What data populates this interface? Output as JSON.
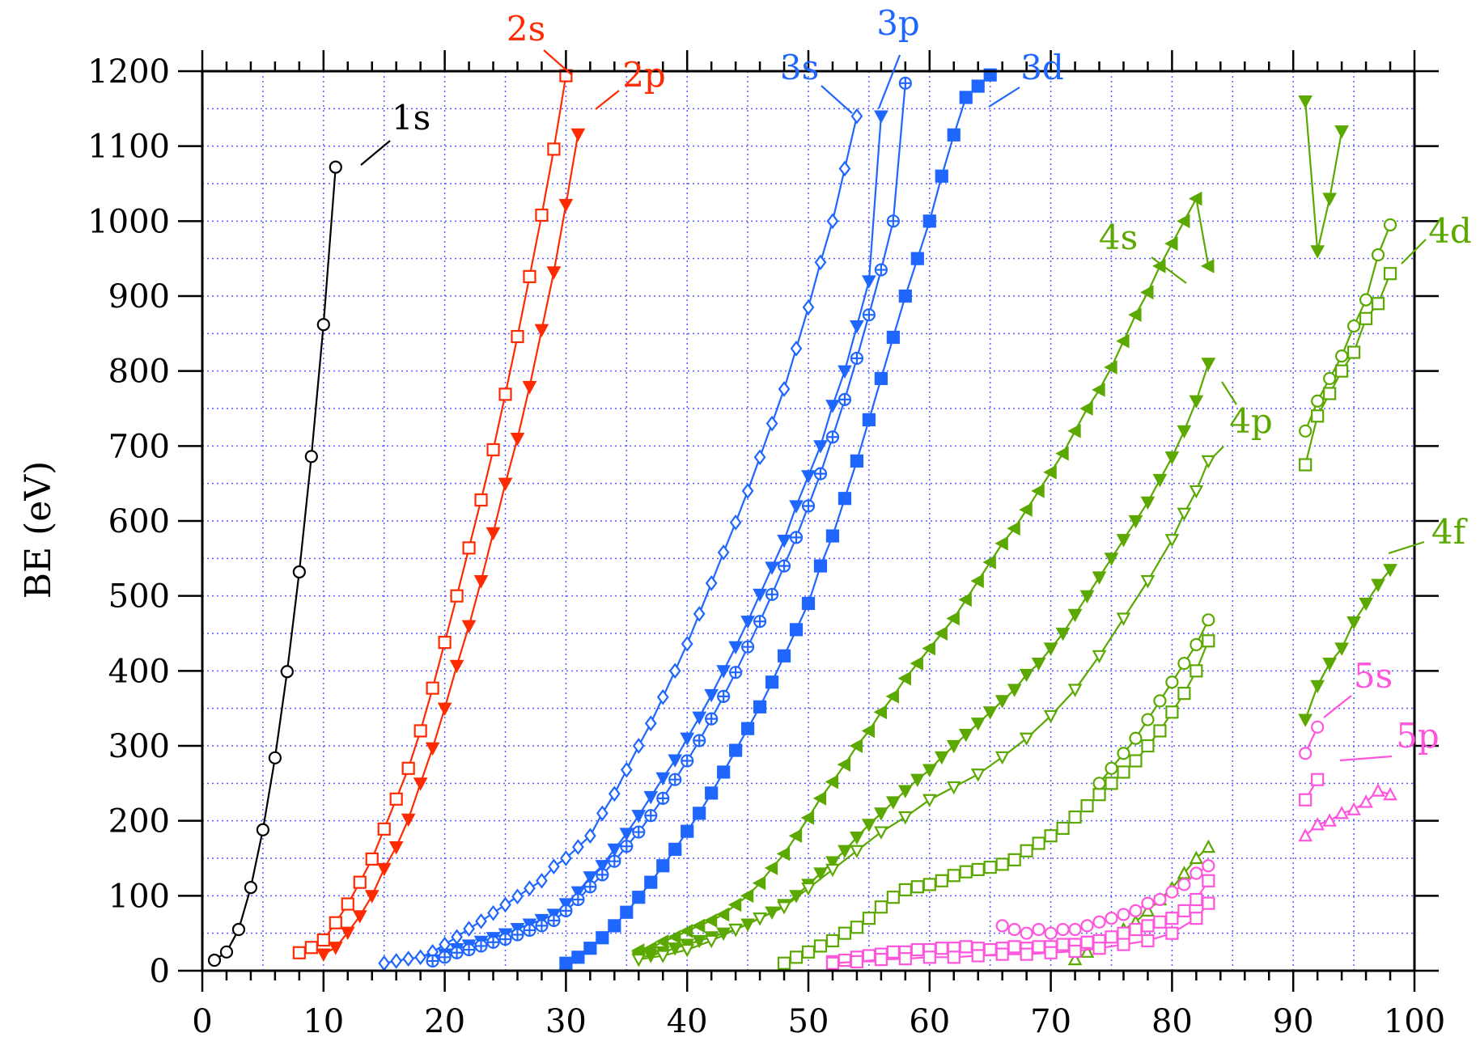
{
  "chart_data": {
    "type": "line",
    "title": "",
    "xlabel": "",
    "ylabel": "BE (eV)",
    "xlim": [
      0,
      100
    ],
    "ylim": [
      0,
      1200
    ],
    "x_ticks": [
      "0",
      "10",
      "20",
      "30",
      "40",
      "50",
      "60",
      "70",
      "80",
      "90",
      "100"
    ],
    "y_ticks": [
      "0",
      "100",
      "200",
      "300",
      "400",
      "500",
      "600",
      "700",
      "800",
      "900",
      "1000",
      "1100",
      "1200"
    ],
    "grid": true,
    "series": [
      {
        "name": "1s",
        "color": "#000000",
        "marker": "circle",
        "x": [
          1,
          2,
          3,
          4,
          5,
          6,
          7,
          8,
          9,
          10,
          11
        ],
        "y": [
          14,
          25,
          55,
          111,
          188,
          284,
          399,
          532,
          686,
          862,
          1072
        ]
      },
      {
        "name": "2s",
        "color": "#ff2a00",
        "marker": "square",
        "x": [
          8,
          9,
          10,
          11,
          12,
          13,
          14,
          15,
          16,
          17,
          18,
          19,
          20,
          21,
          22,
          23,
          24,
          25,
          26,
          27,
          28,
          29,
          30
        ],
        "y": [
          24,
          31,
          41,
          64,
          89,
          118,
          149,
          189,
          229,
          270,
          320,
          377,
          438,
          500,
          564,
          628,
          695,
          769,
          846,
          926,
          1008,
          1096,
          1194
        ]
      },
      {
        "name": "2p",
        "color": "#ff2a00",
        "marker": "triangle-down",
        "x": [
          10,
          11,
          12,
          13,
          14,
          15,
          16,
          17,
          18,
          19,
          20,
          21,
          22,
          23,
          24,
          25,
          26,
          27,
          28,
          29,
          30,
          31
        ],
        "y": [
          22,
          31,
          51,
          73,
          100,
          136,
          165,
          202,
          250,
          297,
          350,
          407,
          460,
          520,
          584,
          650,
          710,
          779,
          855,
          932,
          1022,
          1116
        ]
      },
      {
        "name": "3s",
        "color": "#1f66ff",
        "marker": "diamond",
        "x": [
          15,
          16,
          17,
          18,
          19,
          20,
          21,
          22,
          23,
          24,
          25,
          26,
          27,
          28,
          29,
          30,
          31,
          32,
          33,
          34,
          35,
          36,
          37,
          38,
          39,
          40,
          41,
          42,
          43,
          44,
          45,
          46,
          47,
          48,
          49,
          50,
          51,
          52,
          53,
          54
        ],
        "y": [
          10,
          13,
          16,
          18,
          25,
          35,
          45,
          56,
          66,
          77,
          88,
          99,
          110,
          120,
          139,
          150,
          165,
          180,
          210,
          236,
          268,
          300,
          330,
          365,
          400,
          436,
          476,
          517,
          558,
          598,
          640,
          685,
          730,
          776,
          830,
          885,
          945,
          1000,
          1070,
          1140
        ]
      },
      {
        "name": "3p",
        "color": "#1f66ff",
        "marker": "triangle-down",
        "x": [
          19,
          20,
          21,
          22,
          23,
          24,
          25,
          26,
          27,
          28,
          29,
          30,
          31,
          32,
          33,
          34,
          35,
          36,
          37,
          38,
          39,
          40,
          41,
          42,
          43,
          44,
          45,
          46,
          47,
          48,
          49,
          50,
          51,
          52,
          53,
          54,
          55,
          56
        ],
        "y": [
          14,
          22,
          29,
          34,
          39,
          44,
          49,
          56,
          62,
          68,
          75,
          89,
          105,
          125,
          140,
          162,
          183,
          207,
          232,
          257,
          281,
          310,
          338,
          368,
          400,
          432,
          466,
          502,
          538,
          574,
          620,
          660,
          700,
          754,
          800,
          860,
          920,
          1140
        ]
      },
      {
        "name": "",
        "color": "#1f66ff",
        "marker": "circle-plus",
        "x": [
          19,
          20,
          21,
          22,
          23,
          24,
          25,
          26,
          27,
          28,
          29,
          30,
          31,
          32,
          33,
          34,
          35,
          36,
          37,
          38,
          39,
          40,
          41,
          42,
          43,
          44,
          45,
          46,
          47,
          48,
          49,
          50,
          51,
          52,
          53,
          54,
          55,
          56,
          57,
          58
        ],
        "y": [
          13,
          18,
          24,
          28,
          33,
          38,
          42,
          48,
          54,
          60,
          67,
          80,
          95,
          112,
          128,
          146,
          166,
          185,
          207,
          230,
          255,
          280,
          307,
          336,
          366,
          398,
          432,
          466,
          502,
          540,
          578,
          620,
          663,
          712,
          762,
          817,
          875,
          935,
          1000,
          1184
        ]
      },
      {
        "name": "3d",
        "color": "#1f66ff",
        "marker": "square-filled",
        "x": [
          30,
          31,
          32,
          33,
          34,
          35,
          36,
          37,
          38,
          39,
          40,
          41,
          42,
          43,
          44,
          45,
          46,
          47,
          48,
          49,
          50,
          51,
          52,
          53,
          54,
          55,
          56,
          57,
          58,
          59,
          60,
          61,
          62,
          63,
          64,
          65
        ],
        "y": [
          10,
          18,
          30,
          44,
          60,
          78,
          98,
          118,
          140,
          162,
          186,
          210,
          237,
          265,
          294,
          323,
          352,
          385,
          420,
          455,
          490,
          540,
          580,
          630,
          680,
          735,
          790,
          845,
          900,
          950,
          1000,
          1060,
          1115,
          1165,
          1180,
          1195
        ]
      },
      {
        "name": "4s",
        "color": "#5aa800",
        "marker": "triangle-left",
        "x": [
          36,
          37,
          38,
          39,
          40,
          41,
          42,
          43,
          44,
          45,
          46,
          47,
          48,
          49,
          50,
          51,
          52,
          53,
          54,
          55,
          56,
          57,
          58,
          59,
          60,
          61,
          62,
          63,
          64,
          65,
          66,
          67,
          68,
          69,
          70,
          71,
          72,
          73,
          74,
          75,
          76,
          77,
          78,
          79,
          80,
          81,
          82,
          83
        ],
        "y": [
          27,
          30,
          39,
          45,
          53,
          60,
          67,
          75,
          88,
          100,
          117,
          137,
          156,
          180,
          204,
          230,
          252,
          275,
          300,
          320,
          345,
          366,
          390,
          410,
          430,
          450,
          470,
          495,
          520,
          545,
          570,
          590,
          615,
          640,
          665,
          690,
          720,
          750,
          775,
          805,
          840,
          875,
          905,
          940,
          970,
          1000,
          1030,
          940
        ]
      },
      {
        "name": "4p",
        "color": "#5aa800",
        "marker": "triangle-down",
        "x": [
          36,
          37,
          38,
          39,
          40,
          41,
          42,
          43,
          44,
          45,
          46,
          47,
          48,
          49,
          50,
          51,
          52,
          53,
          54,
          55,
          56,
          57,
          58,
          59,
          60,
          61,
          62,
          63,
          64,
          65,
          66,
          67,
          68,
          69,
          70,
          71,
          72,
          73,
          74,
          75,
          76,
          77,
          78,
          79,
          80,
          81,
          82,
          83
        ],
        "y": [
          18,
          20,
          25,
          30,
          35,
          40,
          45,
          50,
          55,
          62,
          70,
          78,
          88,
          100,
          115,
          130,
          145,
          160,
          178,
          195,
          210,
          225,
          240,
          255,
          268,
          285,
          300,
          315,
          330,
          345,
          360,
          375,
          395,
          410,
          430,
          450,
          475,
          500,
          525,
          550,
          575,
          600,
          625,
          655,
          685,
          720,
          760,
          810
        ]
      },
      {
        "name": "",
        "color": "#5aa800",
        "marker": "triangle-down-open",
        "x": [
          36,
          38,
          40,
          42,
          44,
          46,
          48,
          50,
          52,
          54,
          56,
          58,
          60,
          62,
          64,
          66,
          68,
          70,
          72,
          74,
          76,
          78,
          80,
          81,
          82,
          83
        ],
        "y": [
          15,
          20,
          28,
          40,
          55,
          70,
          85,
          110,
          135,
          160,
          185,
          205,
          228,
          245,
          262,
          285,
          310,
          340,
          375,
          420,
          470,
          520,
          575,
          610,
          640,
          680
        ]
      },
      {
        "name": "4d",
        "color": "#5aa800",
        "marker": "square",
        "x": [
          48,
          49,
          50,
          51,
          52,
          53,
          54,
          55,
          56,
          57,
          58,
          59,
          60,
          61,
          62,
          63,
          64,
          65,
          66,
          67,
          68,
          69,
          70,
          71,
          72,
          73,
          74,
          75,
          76,
          77,
          78,
          79,
          80,
          81,
          82,
          83
        ],
        "y": [
          10,
          18,
          25,
          33,
          40,
          50,
          58,
          70,
          85,
          98,
          108,
          112,
          115,
          120,
          127,
          132,
          135,
          138,
          142,
          148,
          160,
          170,
          180,
          190,
          205,
          220,
          235,
          250,
          265,
          280,
          300,
          320,
          345,
          370,
          400,
          440
        ]
      },
      {
        "name": "",
        "color": "#5aa800",
        "marker": "circle",
        "x": [
          74,
          75,
          76,
          77,
          78,
          79,
          80,
          81,
          82,
          83
        ],
        "y": [
          250,
          270,
          290,
          310,
          335,
          360,
          385,
          410,
          435,
          468
        ]
      },
      {
        "name": "",
        "color": "#5aa800",
        "marker": "triangle-up",
        "x": [
          72,
          73,
          74,
          75,
          76,
          77,
          78,
          79,
          80,
          81,
          82,
          83
        ],
        "y": [
          15,
          25,
          35,
          45,
          55,
          65,
          80,
          95,
          110,
          130,
          150,
          165
        ]
      },
      {
        "name": "5s",
        "color": "#ff55dd",
        "marker": "circle",
        "x": [
          66,
          67,
          68,
          69,
          70,
          71,
          72,
          73,
          74,
          75,
          76,
          77,
          78,
          79,
          80,
          81,
          82,
          83
        ],
        "y": [
          60,
          55,
          50,
          55,
          50,
          55,
          55,
          60,
          65,
          70,
          75,
          80,
          90,
          95,
          105,
          115,
          130,
          140
        ]
      },
      {
        "name": "5p",
        "color": "#ff55dd",
        "marker": "square",
        "x": [
          52,
          53,
          54,
          55,
          56,
          57,
          58,
          59,
          60,
          61,
          62,
          63,
          64,
          65,
          66,
          67,
          68,
          69,
          70,
          71,
          72,
          73,
          74,
          75,
          76,
          77,
          78,
          79,
          80,
          81,
          82,
          83
        ],
        "y": [
          12,
          14,
          18,
          20,
          22,
          25,
          25,
          28,
          28,
          30,
          30,
          32,
          30,
          28,
          30,
          32,
          30,
          32,
          32,
          35,
          35,
          38,
          40,
          45,
          50,
          55,
          60,
          65,
          70,
          80,
          95,
          120
        ]
      },
      {
        "name": "",
        "color": "#ff55dd",
        "marker": "square",
        "x": [
          52,
          54,
          56,
          58,
          60,
          62,
          64,
          66,
          68,
          70,
          72,
          74,
          76,
          78,
          80,
          82,
          83
        ],
        "y": [
          10,
          12,
          15,
          16,
          18,
          18,
          20,
          22,
          22,
          24,
          26,
          30,
          35,
          40,
          50,
          70,
          90
        ]
      },
      {
        "name": "",
        "color": "#5aa800",
        "marker": "triangle-down",
        "x": [
          91,
          92,
          93,
          94
        ],
        "y": [
          1160,
          960,
          1030,
          1120
        ]
      },
      {
        "name": "",
        "color": "#5aa800",
        "marker": "circle",
        "x": [
          91,
          92,
          93,
          94,
          95,
          96,
          97,
          98
        ],
        "y": [
          720,
          760,
          790,
          820,
          860,
          895,
          955,
          995
        ]
      },
      {
        "name": "",
        "color": "#5aa800",
        "marker": "square",
        "x": [
          91,
          92,
          93,
          94,
          95,
          96,
          97,
          98
        ],
        "y": [
          675,
          740,
          770,
          800,
          825,
          870,
          890,
          930
        ]
      },
      {
        "name": "4f",
        "color": "#5aa800",
        "marker": "triangle-down",
        "x": [
          91,
          92,
          93,
          94,
          95,
          96,
          97,
          98
        ],
        "y": [
          335,
          380,
          410,
          430,
          465,
          490,
          515,
          535
        ]
      },
      {
        "name": "",
        "color": "#ff55dd",
        "marker": "circle",
        "x": [
          91,
          92
        ],
        "y": [
          290,
          325
        ]
      },
      {
        "name": "",
        "color": "#ff55dd",
        "marker": "square",
        "x": [
          91,
          92
        ],
        "y": [
          228,
          255
        ]
      },
      {
        "name": "",
        "color": "#ff55dd",
        "marker": "triangle-up",
        "x": [
          91,
          92,
          93,
          94,
          95,
          96,
          97,
          98
        ],
        "y": [
          180,
          195,
          200,
          210,
          215,
          225,
          240,
          235
        ]
      }
    ],
    "labels": [
      {
        "text": "1s",
        "color": "#000000"
      },
      {
        "text": "2s",
        "color": "#ff2a00"
      },
      {
        "text": "2p",
        "color": "#ff2a00"
      },
      {
        "text": "3s",
        "color": "#1f66ff"
      },
      {
        "text": "3p",
        "color": "#1f66ff"
      },
      {
        "text": "3d",
        "color": "#1f66ff"
      },
      {
        "text": "4s",
        "color": "#5aa800"
      },
      {
        "text": "4p",
        "color": "#5aa800"
      },
      {
        "text": "4d",
        "color": "#5aa800"
      },
      {
        "text": "4f",
        "color": "#5aa800"
      },
      {
        "text": "5s",
        "color": "#ff55dd"
      },
      {
        "text": "5p",
        "color": "#ff55dd"
      }
    ],
    "grid_color": "#5a5aff"
  }
}
